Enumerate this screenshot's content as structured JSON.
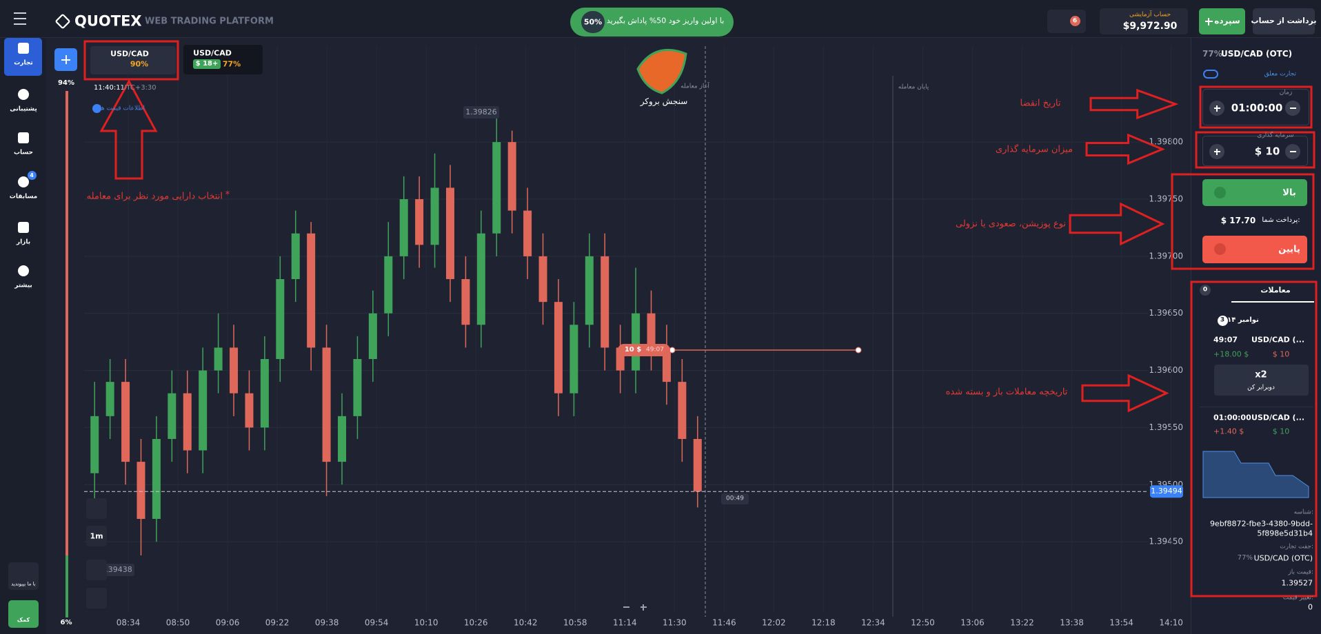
{
  "chart_data": {
    "type": "candlestick",
    "open": [
      1.3951,
      1.3956,
      1.3959,
      1.3952,
      1.3947,
      1.3954,
      1.3958,
      1.3953,
      1.396,
      1.3962,
      1.3958,
      1.3955,
      1.3961,
      1.3968,
      1.3972,
      1.3962,
      1.3952,
      1.3956,
      1.3961,
      1.3965,
      1.397,
      1.3975,
      1.3971,
      1.3976,
      1.3968,
      1.3964,
      1.3972,
      1.398,
      1.3974,
      1.397,
      1.3966,
      1.3958,
      1.3964,
      1.397,
      1.3962,
      1.396,
      1.3965,
      1.3962,
      1.3959,
      1.3954
    ],
    "high": [
      1.3959,
      1.3961,
      1.3961,
      1.3954,
      1.3956,
      1.396,
      1.396,
      1.3962,
      1.3965,
      1.3964,
      1.396,
      1.3963,
      1.397,
      1.3974,
      1.3973,
      1.3964,
      1.3958,
      1.3963,
      1.3967,
      1.3973,
      1.3977,
      1.3977,
      1.3979,
      1.3978,
      1.397,
      1.3974,
      1.39826,
      1.3981,
      1.3976,
      1.3972,
      1.3968,
      1.3966,
      1.3972,
      1.3972,
      1.3964,
      1.3969,
      1.3967,
      1.3964,
      1.3961,
      1.3956
    ],
    "low": [
      1.3948,
      1.3954,
      1.395,
      1.39438,
      1.3945,
      1.3952,
      1.3951,
      1.3951,
      1.3958,
      1.3956,
      1.3953,
      1.3953,
      1.3959,
      1.3966,
      1.396,
      1.3949,
      1.395,
      1.3954,
      1.3959,
      1.3963,
      1.3968,
      1.3969,
      1.3969,
      1.3966,
      1.3962,
      1.3962,
      1.397,
      1.3972,
      1.3968,
      1.3964,
      1.3956,
      1.3956,
      1.3962,
      1.396,
      1.3958,
      1.3958,
      1.396,
      1.3957,
      1.3952,
      1.3948
    ],
    "close": [
      1.3956,
      1.3959,
      1.3952,
      1.3947,
      1.3954,
      1.3958,
      1.3953,
      1.396,
      1.3962,
      1.3958,
      1.3955,
      1.3961,
      1.3968,
      1.3972,
      1.3962,
      1.3952,
      1.3956,
      1.3961,
      1.3965,
      1.397,
      1.3975,
      1.3971,
      1.3976,
      1.3968,
      1.3964,
      1.3972,
      1.398,
      1.3974,
      1.397,
      1.3966,
      1.3958,
      1.3964,
      1.397,
      1.3962,
      1.396,
      1.3965,
      1.3962,
      1.3959,
      1.3954,
      1.39494
    ],
    "up_color": "#3fa35a",
    "down_color": "#e0685a",
    "ylim": [
      1.39371,
      1.39884
    ],
    "yticks": [
      {
        "value": 1.3945,
        "label": "1.39450"
      },
      {
        "value": 1.395,
        "label": "1.39500"
      },
      {
        "value": 1.3955,
        "label": "1.39550"
      },
      {
        "value": 1.396,
        "label": "1.39600"
      },
      {
        "value": 1.3965,
        "label": "1.39650"
      },
      {
        "value": 1.397,
        "label": "1.39700"
      },
      {
        "value": 1.3975,
        "label": "1.39750"
      },
      {
        "value": 1.398,
        "label": "1.39800"
      }
    ],
    "xtick_labels": [
      "08:34",
      "08:50",
      "09:06",
      "09:22",
      "09:38",
      "09:54",
      "10:10",
      "10:26",
      "10:42",
      "10:58",
      "11:14",
      "11:30",
      "11:46",
      "12:02",
      "12:18",
      "12:34",
      "12:50",
      "13:06",
      "13:22",
      "13:38",
      "13:54",
      "14:10"
    ],
    "grid": true
  },
  "ui": {
    "header": {
      "logo": "QUOTEX",
      "tagline": "WEB TRADING PLATFORM",
      "promo_badge": "50%",
      "promo_text": "با اولین واریز خود 50% پاداش بگیرید",
      "notifications": "6",
      "account_type": "حساب آزمایشی",
      "balance": "$9,972.90",
      "deposit": "سپرده",
      "withdraw": "برداشت از حساب"
    },
    "sidebar": {
      "items": [
        "تجارت",
        "پشتیبانی",
        "حساب",
        "مسابقات",
        "بازار",
        "بیشتر"
      ],
      "tournaments_badge": "4",
      "join": "با ما بپیوندید",
      "help": "کمک"
    },
    "chart_overlay": {
      "tab1_asset": "USD/CAD",
      "tab1_payout": "90%",
      "tab2_asset": "USD/CAD",
      "tab2_profit": "$ 18+",
      "tab2_payout": "77%",
      "up_share": "94%",
      "down_share": "6%",
      "clock": "11:40:11",
      "timezone": "UTC+3:30",
      "info": "اطلاعات قیمت ها",
      "start_label": "آغاز معامله",
      "end_label": "پایان معامله",
      "watermark": "سنجش بروکر",
      "trade_marker_amount": "10 $",
      "trade_marker_time": "49:07",
      "countdown": "00:49",
      "timeframe": "1m"
    },
    "annotations": {
      "select_asset": "انتخاب دارایی مورد نظر برای معامله",
      "star": "*",
      "expiry": "تاریخ انقضا",
      "investment": "میزان سرمایه گذاری",
      "position": "نوع پوزیشن، صعودی یا نزولی",
      "history": "تاریخچه معاملات باز و بسته شده"
    },
    "panel": {
      "payout": "77%",
      "asset": "USD/CAD (OTC)",
      "pending": "تجارت معلق",
      "time_label": "زمان",
      "time": "01:00:00",
      "invest_label": "سرمایه گذاری",
      "invest": "$ 10",
      "up": "بالا",
      "payout_label": "پرداخت شما:",
      "payout_amount": "$ 17.70",
      "down": "پایین",
      "trades_title": "معاملات",
      "open_count": "0",
      "date": "۱۴ نوامبر",
      "date_count": "3",
      "trade1": {
        "time": "49:07",
        "asset": "USD/CAD (...",
        "profit": "+18.00 $",
        "stake": "$ 10",
        "double": "x2",
        "double_label": "دوبرابر کن"
      },
      "trade2": {
        "time": "01:00:00",
        "asset": "USD/CAD (...",
        "profit": "+1.40 $",
        "stake": "$ 10"
      },
      "id_label": "شناسه:",
      "id_line1": "9ebf8872-fbe3-4380-9bdd-",
      "id_line2": "5f898e5d31b4",
      "pair_label": "جفت تجارت:",
      "pair_payout": "77%",
      "pair": "USD/CAD (OTC)",
      "open_label": "قیمت باز:",
      "open_price": "1.39527",
      "change_label": "تغییر قیمت:",
      "change": "0"
    }
  }
}
